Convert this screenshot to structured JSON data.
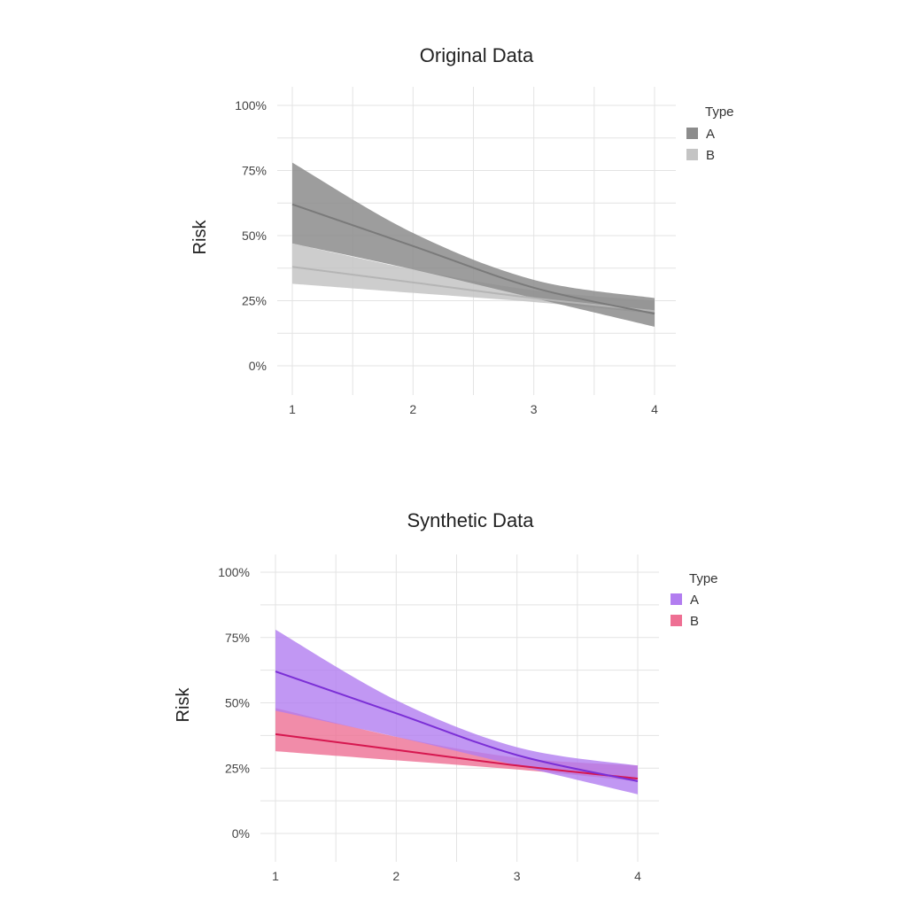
{
  "chart_data": [
    {
      "type": "line",
      "title": "Original Data",
      "xlabel": "",
      "ylabel": "Risk",
      "x": [
        1,
        2,
        3,
        4
      ],
      "x_ticks": [
        "1",
        "2",
        "3",
        "4"
      ],
      "y_ticks": [
        "0%",
        "25%",
        "50%",
        "75%",
        "100%"
      ],
      "ylim": [
        0,
        1
      ],
      "xlim": [
        1,
        4
      ],
      "grid": true,
      "legend": {
        "title": "Type",
        "position": "right",
        "entries": [
          "A",
          "B"
        ]
      },
      "series": [
        {
          "name": "A",
          "color": "#7a7a7a",
          "fill": "#8c8c8c",
          "values": [
            0.62,
            0.46,
            0.3,
            0.2
          ],
          "lower": [
            0.47,
            0.37,
            0.26,
            0.15
          ],
          "upper": [
            0.78,
            0.51,
            0.33,
            0.26
          ]
        },
        {
          "name": "B",
          "color": "#b5b5b5",
          "fill": "#c4c4c4",
          "values": [
            0.38,
            0.32,
            0.26,
            0.21
          ],
          "lower": [
            0.315,
            0.28,
            0.245,
            0.2
          ],
          "upper": [
            0.47,
            0.37,
            0.29,
            0.25
          ]
        }
      ]
    },
    {
      "type": "line",
      "title": "Synthetic Data",
      "xlabel": "",
      "ylabel": "Risk",
      "x": [
        1,
        2,
        3,
        4
      ],
      "x_ticks": [
        "1",
        "2",
        "3",
        "4"
      ],
      "y_ticks": [
        "0%",
        "25%",
        "50%",
        "75%",
        "100%"
      ],
      "ylim": [
        0,
        1
      ],
      "xlim": [
        1,
        4
      ],
      "grid": true,
      "legend": {
        "title": "Type",
        "position": "right",
        "entries": [
          "A",
          "B"
        ]
      },
      "series": [
        {
          "name": "A",
          "color": "#7b2fd6",
          "fill": "#b27df0",
          "values": [
            0.62,
            0.46,
            0.3,
            0.2
          ],
          "lower": [
            0.47,
            0.37,
            0.26,
            0.15
          ],
          "upper": [
            0.78,
            0.51,
            0.33,
            0.26
          ]
        },
        {
          "name": "B",
          "color": "#d6174f",
          "fill": "#ee6f93",
          "values": [
            0.38,
            0.32,
            0.26,
            0.21
          ],
          "lower": [
            0.315,
            0.28,
            0.245,
            0.2
          ],
          "upper": [
            0.48,
            0.37,
            0.29,
            0.26
          ]
        }
      ]
    }
  ]
}
